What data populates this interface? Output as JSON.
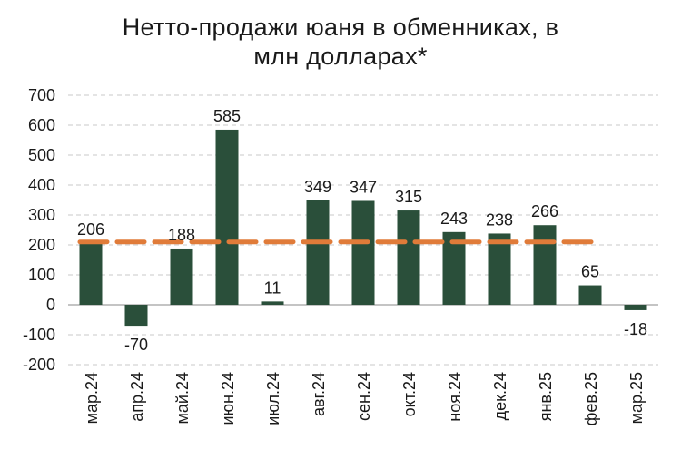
{
  "chart_data": {
    "type": "bar",
    "title_line1": "Нетто-продажи юаня в обменниках, в",
    "title_line2": "млн долларах*",
    "categories": [
      "мар.24",
      "апр.24",
      "май.24",
      "июн.24",
      "июл.24",
      "авг.24",
      "сен.24",
      "окт.24",
      "ноя.24",
      "дек.24",
      "янв.25",
      "фев.25",
      "мар.25"
    ],
    "values": [
      206,
      -70,
      188,
      585,
      11,
      349,
      347,
      315,
      243,
      238,
      266,
      65,
      -18
    ],
    "value_labels": [
      "206",
      "-70",
      "188",
      "585",
      "11",
      "349",
      "347",
      "315",
      "243",
      "238",
      "266",
      "65",
      "-18"
    ],
    "average_line": 210,
    "ylim": [
      -200,
      700
    ],
    "yticks": [
      "700",
      "600",
      "500",
      "400",
      "300",
      "200",
      "100",
      "0",
      "-100",
      "-200"
    ],
    "ytick_values": [
      700,
      600,
      500,
      400,
      300,
      200,
      100,
      0,
      -100,
      -200
    ],
    "xlabel": "",
    "ylabel": "",
    "colors": {
      "bar": "#2a4f3a",
      "average_line": "#e07b39",
      "grid": "#c8c8c8",
      "zero_line": "#b0b0b0"
    }
  }
}
